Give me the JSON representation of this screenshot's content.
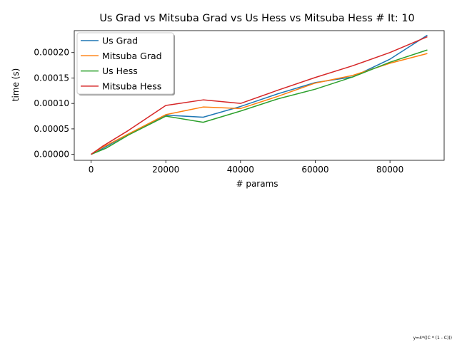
{
  "chart_data": {
    "type": "line",
    "title": "Us Grad vs Mitsuba Grad vs Us Hess vs Mitsuba Hess # It: 10",
    "xlabel": "# params",
    "ylabel": "time (s)",
    "xlim": [
      -4500,
      94500
    ],
    "ylim": [
      -1.17e-05,
      0.000243
    ],
    "xticks": [
      0,
      20000,
      40000,
      60000,
      80000
    ],
    "yticks": [
      0.0,
      5e-05,
      0.0001,
      0.00015,
      0.0002
    ],
    "xtick_labels": [
      "0",
      "20000",
      "40000",
      "60000",
      "80000"
    ],
    "ytick_labels": [
      "0.00000",
      "0.00005",
      "0.00010",
      "0.00015",
      "0.00020"
    ],
    "grid": false,
    "legend": "top-left",
    "series": [
      {
        "name": "Us Grad",
        "color": "#1f77b4",
        "x": [
          0,
          3000,
          10000,
          20000,
          30000,
          40000,
          50000,
          60000,
          70000,
          80000,
          90000
        ],
        "y": [
          0.0,
          1.1e-05,
          4e-05,
          7.7e-05,
          7.3e-05,
          9.4e-05,
          0.000119,
          0.000141,
          0.000152,
          0.000187,
          0.000234
        ]
      },
      {
        "name": "Mitsuba Grad",
        "color": "#ff7f0e",
        "x": [
          0,
          3000,
          10000,
          20000,
          30000,
          40000,
          50000,
          60000,
          70000,
          80000,
          90000
        ],
        "y": [
          0.0,
          1.35e-05,
          4e-05,
          7.8e-05,
          9.3e-05,
          9e-05,
          0.000114,
          0.00014,
          0.000155,
          0.000179,
          0.000198
        ]
      },
      {
        "name": "Us Hess",
        "color": "#2ca02c",
        "x": [
          0,
          4000,
          10000,
          20000,
          30000,
          40000,
          50000,
          60000,
          70000,
          80000,
          90000
        ],
        "y": [
          0.0,
          1.2e-05,
          3.8e-05,
          7.5e-05,
          6.3e-05,
          8.5e-05,
          0.000109,
          0.000128,
          0.000152,
          0.000181,
          0.000205
        ]
      },
      {
        "name": "Mitsuba Hess",
        "color": "#d62728",
        "x": [
          0,
          3000,
          10000,
          20000,
          30000,
          40000,
          50000,
          60000,
          70000,
          80000,
          90000
        ],
        "y": [
          0.0,
          1.55e-05,
          4.7e-05,
          9.6e-05,
          0.000107,
          0.0001,
          0.000126,
          0.000151,
          0.000174,
          0.0002,
          0.000231
        ]
      }
    ]
  },
  "footnote": "y=4*((C * (1 - C)))"
}
